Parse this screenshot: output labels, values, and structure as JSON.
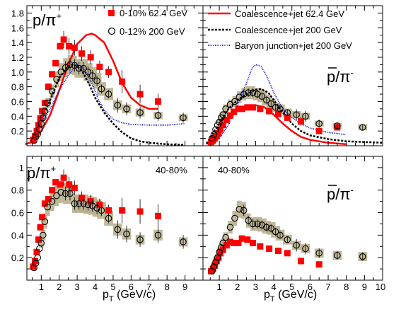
{
  "figure": {
    "x_axis_label": "p",
    "x_axis_label_sub": "T",
    "x_axis_label_unit": " (GeV/c)",
    "x_ticks_left": [
      "1",
      "2",
      "3",
      "4",
      "5",
      "6",
      "7",
      "8",
      "9"
    ],
    "x_ticks_right": [
      "1",
      "2",
      "3",
      "4",
      "5",
      "6",
      "7",
      "8",
      "9",
      "10"
    ],
    "y_ticks_top": [
      "0.2",
      "0.4",
      "0.6",
      "0.8",
      "1.0",
      "1.2",
      "1.4",
      "1.6",
      "1.8"
    ],
    "y_ticks_bottom": [
      "0.2",
      "0.4",
      "0.6",
      "0.8",
      "1"
    ],
    "panel_labels": {
      "top_left": "p/π",
      "top_left_sup": "+",
      "top_right": "p/π",
      "top_right_sup": "-",
      "bottom_left": "p/π",
      "bottom_left_sup": "+",
      "bottom_right": "p/π",
      "bottom_right_sup": "-",
      "centrality_bl": "40-80%",
      "centrality_br": "40-80%"
    },
    "legend_left": [
      {
        "marker": "filled-square",
        "color": "#ff0000",
        "label": "0-10% 62.4 GeV"
      },
      {
        "marker": "open-circle",
        "color": "#000000",
        "label": "0-12% 200 GeV"
      }
    ],
    "legend_right": [
      {
        "style": "solid",
        "color": "#ff0000",
        "label": "Coalescence+jet 62.4 GeV"
      },
      {
        "style": "dashed",
        "color": "#000000",
        "label": "Coalescence+jet 200 GeV"
      },
      {
        "style": "dotted",
        "color": "#0000cc",
        "label": "Baryon junction+jet 200 GeV"
      }
    ],
    "colors": {
      "red": "#ff0000",
      "black": "#000000",
      "blue": "#0000cc",
      "band": "#b8b08f"
    }
  },
  "chart_data": [
    {
      "type": "scatter",
      "panel": "top-left",
      "xlim": [
        0,
        10
      ],
      "ylim": [
        0,
        1.9
      ],
      "series": [
        {
          "name": "0-10% 62.4 GeV",
          "x": [
            0.55,
            0.65,
            0.75,
            0.85,
            0.95,
            1.05,
            1.2,
            1.4,
            1.6,
            1.8,
            2.05,
            2.25,
            2.55,
            2.85,
            3.25,
            3.75,
            4.25,
            4.75,
            5.5,
            6.5,
            7.5
          ],
          "y": [
            0.08,
            0.13,
            0.2,
            0.28,
            0.37,
            0.47,
            0.58,
            0.8,
            0.97,
            1.12,
            1.35,
            1.44,
            1.35,
            1.33,
            1.25,
            1.2,
            1.07,
            1.0,
            0.87,
            0.7,
            0.6
          ]
        },
        {
          "name": "0-12% 200 GeV",
          "x": [
            0.6,
            0.7,
            0.8,
            0.9,
            1.0,
            1.1,
            1.2,
            1.35,
            1.6,
            1.85,
            2.1,
            2.35,
            2.6,
            2.85,
            3.1,
            3.35,
            3.6,
            3.85,
            4.1,
            4.35,
            4.75,
            5.25,
            5.75,
            6.5,
            7.5,
            8.9
          ],
          "y": [
            0.07,
            0.12,
            0.16,
            0.22,
            0.3,
            0.38,
            0.47,
            0.58,
            0.74,
            0.9,
            1.0,
            1.06,
            1.1,
            1.09,
            1.05,
            1.05,
            1.0,
            0.95,
            0.88,
            0.77,
            0.7,
            0.55,
            0.5,
            0.45,
            0.41,
            0.38
          ]
        },
        {
          "name": "Coalescence+jet 62.4 GeV",
          "x": [
            0.1,
            0.5,
            1.0,
            1.5,
            2.0,
            2.5,
            3.0,
            3.5,
            3.8,
            4.0,
            4.5,
            5.0,
            5.5,
            6.0,
            6.5,
            7.0,
            7.5
          ],
          "y": [
            0.02,
            0.05,
            0.2,
            0.42,
            0.75,
            1.1,
            1.38,
            1.5,
            1.52,
            1.5,
            1.4,
            1.15,
            0.85,
            0.65,
            0.55,
            0.5,
            0.5
          ]
        },
        {
          "name": "Coalescence+jet 200 GeV",
          "x": [
            1.0,
            1.5,
            2.0,
            2.5,
            2.8,
            3.0,
            3.3,
            3.7,
            4.0,
            4.5,
            5.0,
            5.5,
            6.0,
            6.5,
            7.0,
            8.0,
            9.0
          ],
          "y": [
            0.35,
            0.62,
            0.92,
            1.08,
            1.1,
            1.08,
            1.0,
            0.82,
            0.65,
            0.45,
            0.3,
            0.18,
            0.1,
            0.06,
            0.04,
            0.02,
            0.01
          ]
        },
        {
          "name": "Baryon junction+jet 200 GeV",
          "x": [
            1.0,
            1.5,
            2.0,
            2.5,
            2.8,
            3.0,
            3.3,
            3.6,
            3.9,
            4.2,
            4.5,
            5.0,
            5.5,
            6.0,
            7.0,
            8.0,
            9.0
          ],
          "y": [
            0.3,
            0.5,
            0.75,
            0.95,
            1.05,
            1.1,
            1.07,
            0.95,
            0.8,
            0.62,
            0.48,
            0.36,
            0.31,
            0.29,
            0.28,
            0.28,
            0.3
          ]
        }
      ]
    },
    {
      "type": "scatter",
      "panel": "top-right",
      "xlim": [
        0,
        10
      ],
      "ylim": [
        0,
        1.9
      ],
      "series": [
        {
          "name": "0-10% 62.4 GeV",
          "x": [
            0.55,
            0.65,
            0.75,
            0.85,
            0.95,
            1.05,
            1.2,
            1.4,
            1.6,
            1.8,
            2.05,
            2.25,
            2.55,
            2.85,
            3.25,
            3.75,
            4.25,
            4.75,
            5.5,
            6.5,
            7.5
          ],
          "y": [
            0.05,
            0.07,
            0.1,
            0.13,
            0.17,
            0.22,
            0.28,
            0.35,
            0.41,
            0.46,
            0.5,
            0.5,
            0.52,
            0.52,
            0.5,
            0.47,
            0.43,
            0.38,
            0.33,
            0.2,
            0.25
          ]
        },
        {
          "name": "0-12% 200 GeV",
          "x": [
            0.6,
            0.7,
            0.8,
            0.9,
            1.0,
            1.1,
            1.2,
            1.35,
            1.6,
            1.85,
            2.1,
            2.35,
            2.6,
            2.85,
            3.1,
            3.35,
            3.6,
            3.85,
            4.1,
            4.35,
            4.75,
            5.25,
            5.75,
            6.5,
            7.5,
            8.9
          ],
          "y": [
            0.1,
            0.15,
            0.22,
            0.28,
            0.32,
            0.38,
            0.42,
            0.5,
            0.56,
            0.6,
            0.66,
            0.7,
            0.72,
            0.72,
            0.7,
            0.67,
            0.62,
            0.57,
            0.52,
            0.5,
            0.45,
            0.42,
            0.4,
            0.3,
            0.27,
            0.25
          ]
        },
        {
          "name": "Coalescence+jet 62.4 GeV",
          "x": [
            0.3,
            1.0,
            1.5,
            2.0,
            2.5,
            3.0,
            3.5,
            4.0,
            4.5,
            5.0,
            5.5,
            6.0,
            7.0,
            8.0
          ],
          "y": [
            0.02,
            0.2,
            0.36,
            0.47,
            0.53,
            0.55,
            0.52,
            0.42,
            0.3,
            0.2,
            0.12,
            0.08,
            0.04,
            0.02
          ]
        },
        {
          "name": "Coalescence+jet 200 GeV",
          "x": [
            0.3,
            1.0,
            1.5,
            2.0,
            2.5,
            3.0,
            3.3,
            3.7,
            4.0,
            4.5,
            5.0,
            5.5,
            6.0,
            7.0,
            8.0,
            10.0
          ],
          "y": [
            0.03,
            0.3,
            0.5,
            0.62,
            0.7,
            0.76,
            0.77,
            0.72,
            0.62,
            0.45,
            0.3,
            0.2,
            0.14,
            0.09,
            0.06,
            0.04
          ]
        },
        {
          "name": "Baryon junction+jet 200 GeV",
          "x": [
            1.0,
            1.5,
            2.0,
            2.5,
            2.8,
            3.0,
            3.3,
            3.6,
            4.0,
            4.5,
            5.0,
            5.5,
            6.0,
            7.0,
            8.0
          ],
          "y": [
            0.1,
            0.28,
            0.55,
            0.85,
            1.05,
            1.1,
            1.08,
            0.95,
            0.72,
            0.5,
            0.38,
            0.3,
            0.24,
            0.18,
            0.15
          ]
        }
      ]
    },
    {
      "type": "scatter",
      "panel": "bottom-left",
      "centrality": "40-80%",
      "xlim": [
        0,
        10
      ],
      "ylim": [
        0,
        1.1
      ],
      "series": [
        {
          "name": "40-80% 62.4 GeV",
          "x": [
            0.55,
            0.65,
            0.75,
            0.85,
            0.95,
            1.05,
            1.2,
            1.4,
            1.6,
            1.8,
            2.05,
            2.25,
            2.55,
            2.85,
            3.25,
            3.75,
            4.25,
            4.75,
            5.5,
            6.5,
            7.5
          ],
          "y": [
            0.12,
            0.17,
            0.25,
            0.36,
            0.47,
            0.56,
            0.68,
            0.72,
            0.8,
            0.87,
            0.85,
            0.91,
            0.85,
            0.82,
            0.73,
            0.7,
            0.67,
            0.62,
            0.62,
            0.61,
            0.57
          ]
        },
        {
          "name": "40-80% 200 GeV",
          "x": [
            0.6,
            0.7,
            0.8,
            0.9,
            1.0,
            1.1,
            1.2,
            1.35,
            1.6,
            1.85,
            2.1,
            2.35,
            2.6,
            2.85,
            3.1,
            3.35,
            3.6,
            3.85,
            4.1,
            4.35,
            4.75,
            5.25,
            5.75,
            6.5,
            7.5,
            8.9
          ],
          "y": [
            0.11,
            0.15,
            0.2,
            0.28,
            0.33,
            0.4,
            0.52,
            0.65,
            0.7,
            0.75,
            0.78,
            0.77,
            0.77,
            0.68,
            0.68,
            0.68,
            0.67,
            0.66,
            0.64,
            0.62,
            0.55,
            0.45,
            0.41,
            0.36,
            0.4,
            0.34
          ]
        }
      ]
    },
    {
      "type": "scatter",
      "panel": "bottom-right",
      "centrality": "40-80%",
      "xlim": [
        0,
        10
      ],
      "ylim": [
        0,
        1.1
      ],
      "series": [
        {
          "name": "40-80% 62.4 GeV",
          "x": [
            0.55,
            0.65,
            0.75,
            0.85,
            0.95,
            1.05,
            1.2,
            1.4,
            1.6,
            1.8,
            2.05,
            2.25,
            2.55,
            2.85,
            3.25,
            3.75,
            4.25,
            4.75,
            5.5,
            6.5
          ],
          "y": [
            0.08,
            0.1,
            0.13,
            0.17,
            0.2,
            0.24,
            0.27,
            0.31,
            0.34,
            0.33,
            0.33,
            0.37,
            0.36,
            0.33,
            0.3,
            0.28,
            0.26,
            0.24,
            0.17,
            0.14
          ]
        },
        {
          "name": "40-80% 200 GeV",
          "x": [
            0.6,
            0.7,
            0.8,
            0.9,
            1.0,
            1.1,
            1.2,
            1.35,
            1.6,
            1.85,
            2.1,
            2.35,
            2.6,
            2.85,
            3.1,
            3.35,
            3.6,
            3.85,
            4.1,
            4.35,
            4.75,
            5.25,
            5.75,
            6.5,
            7.5,
            8.9
          ],
          "y": [
            0.08,
            0.12,
            0.16,
            0.2,
            0.25,
            0.29,
            0.33,
            0.38,
            0.47,
            0.55,
            0.63,
            0.62,
            0.53,
            0.5,
            0.5,
            0.49,
            0.47,
            0.46,
            0.43,
            0.4,
            0.36,
            0.31,
            0.28,
            0.24,
            0.22,
            0.21
          ]
        }
      ]
    }
  ]
}
